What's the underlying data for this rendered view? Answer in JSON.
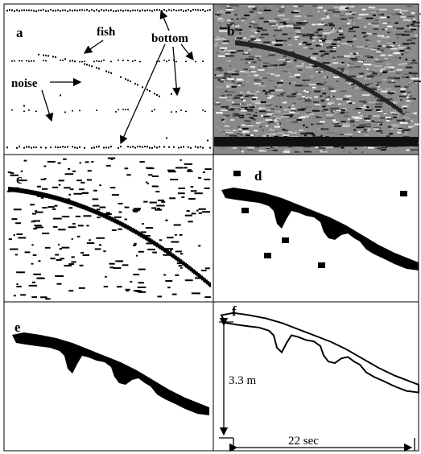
{
  "panels": [
    {
      "label": "a",
      "annotations": [
        "fish",
        "bottom",
        "noise"
      ]
    },
    {
      "label": "b"
    },
    {
      "label": "c"
    },
    {
      "label": "d"
    },
    {
      "label": "e"
    },
    {
      "label": "f",
      "annotations": [
        "3.3 m",
        "22 sec"
      ]
    }
  ]
}
